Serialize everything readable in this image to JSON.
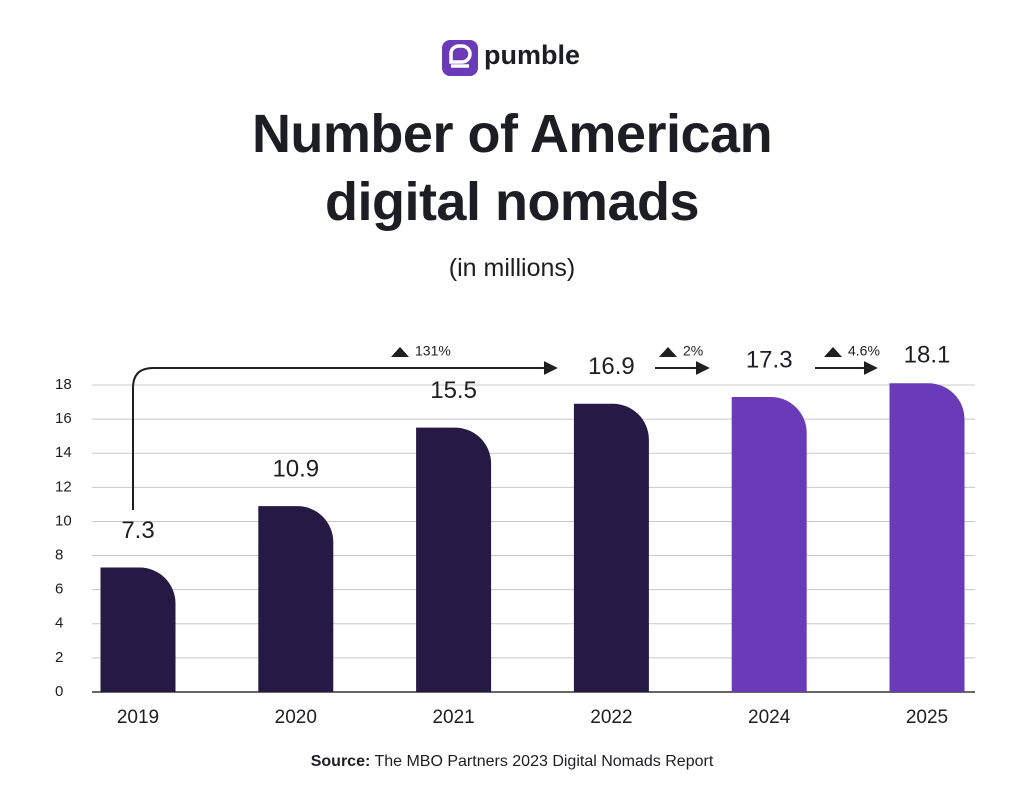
{
  "brand": "pumble",
  "chart_data": {
    "type": "bar",
    "title": "Number of American digital nomads",
    "subtitle": "(in millions)",
    "categories": [
      "2019",
      "2020",
      "2021",
      "2022",
      "2024",
      "2025"
    ],
    "values": [
      7.3,
      10.9,
      15.5,
      16.9,
      17.3,
      18.1
    ],
    "colors": [
      "#261a45",
      "#261a45",
      "#261a45",
      "#261a45",
      "#6a3ab8",
      "#6a3ab8"
    ],
    "ylim": [
      0,
      18
    ],
    "yticks": [
      0,
      2,
      4,
      6,
      8,
      10,
      12,
      14,
      16,
      18
    ],
    "grid": true,
    "annotations": [
      "131%",
      "2%",
      "4.6%"
    ]
  },
  "source_label": "Source:",
  "source": "The MBO Partners 2023 Digital Nomads Report"
}
